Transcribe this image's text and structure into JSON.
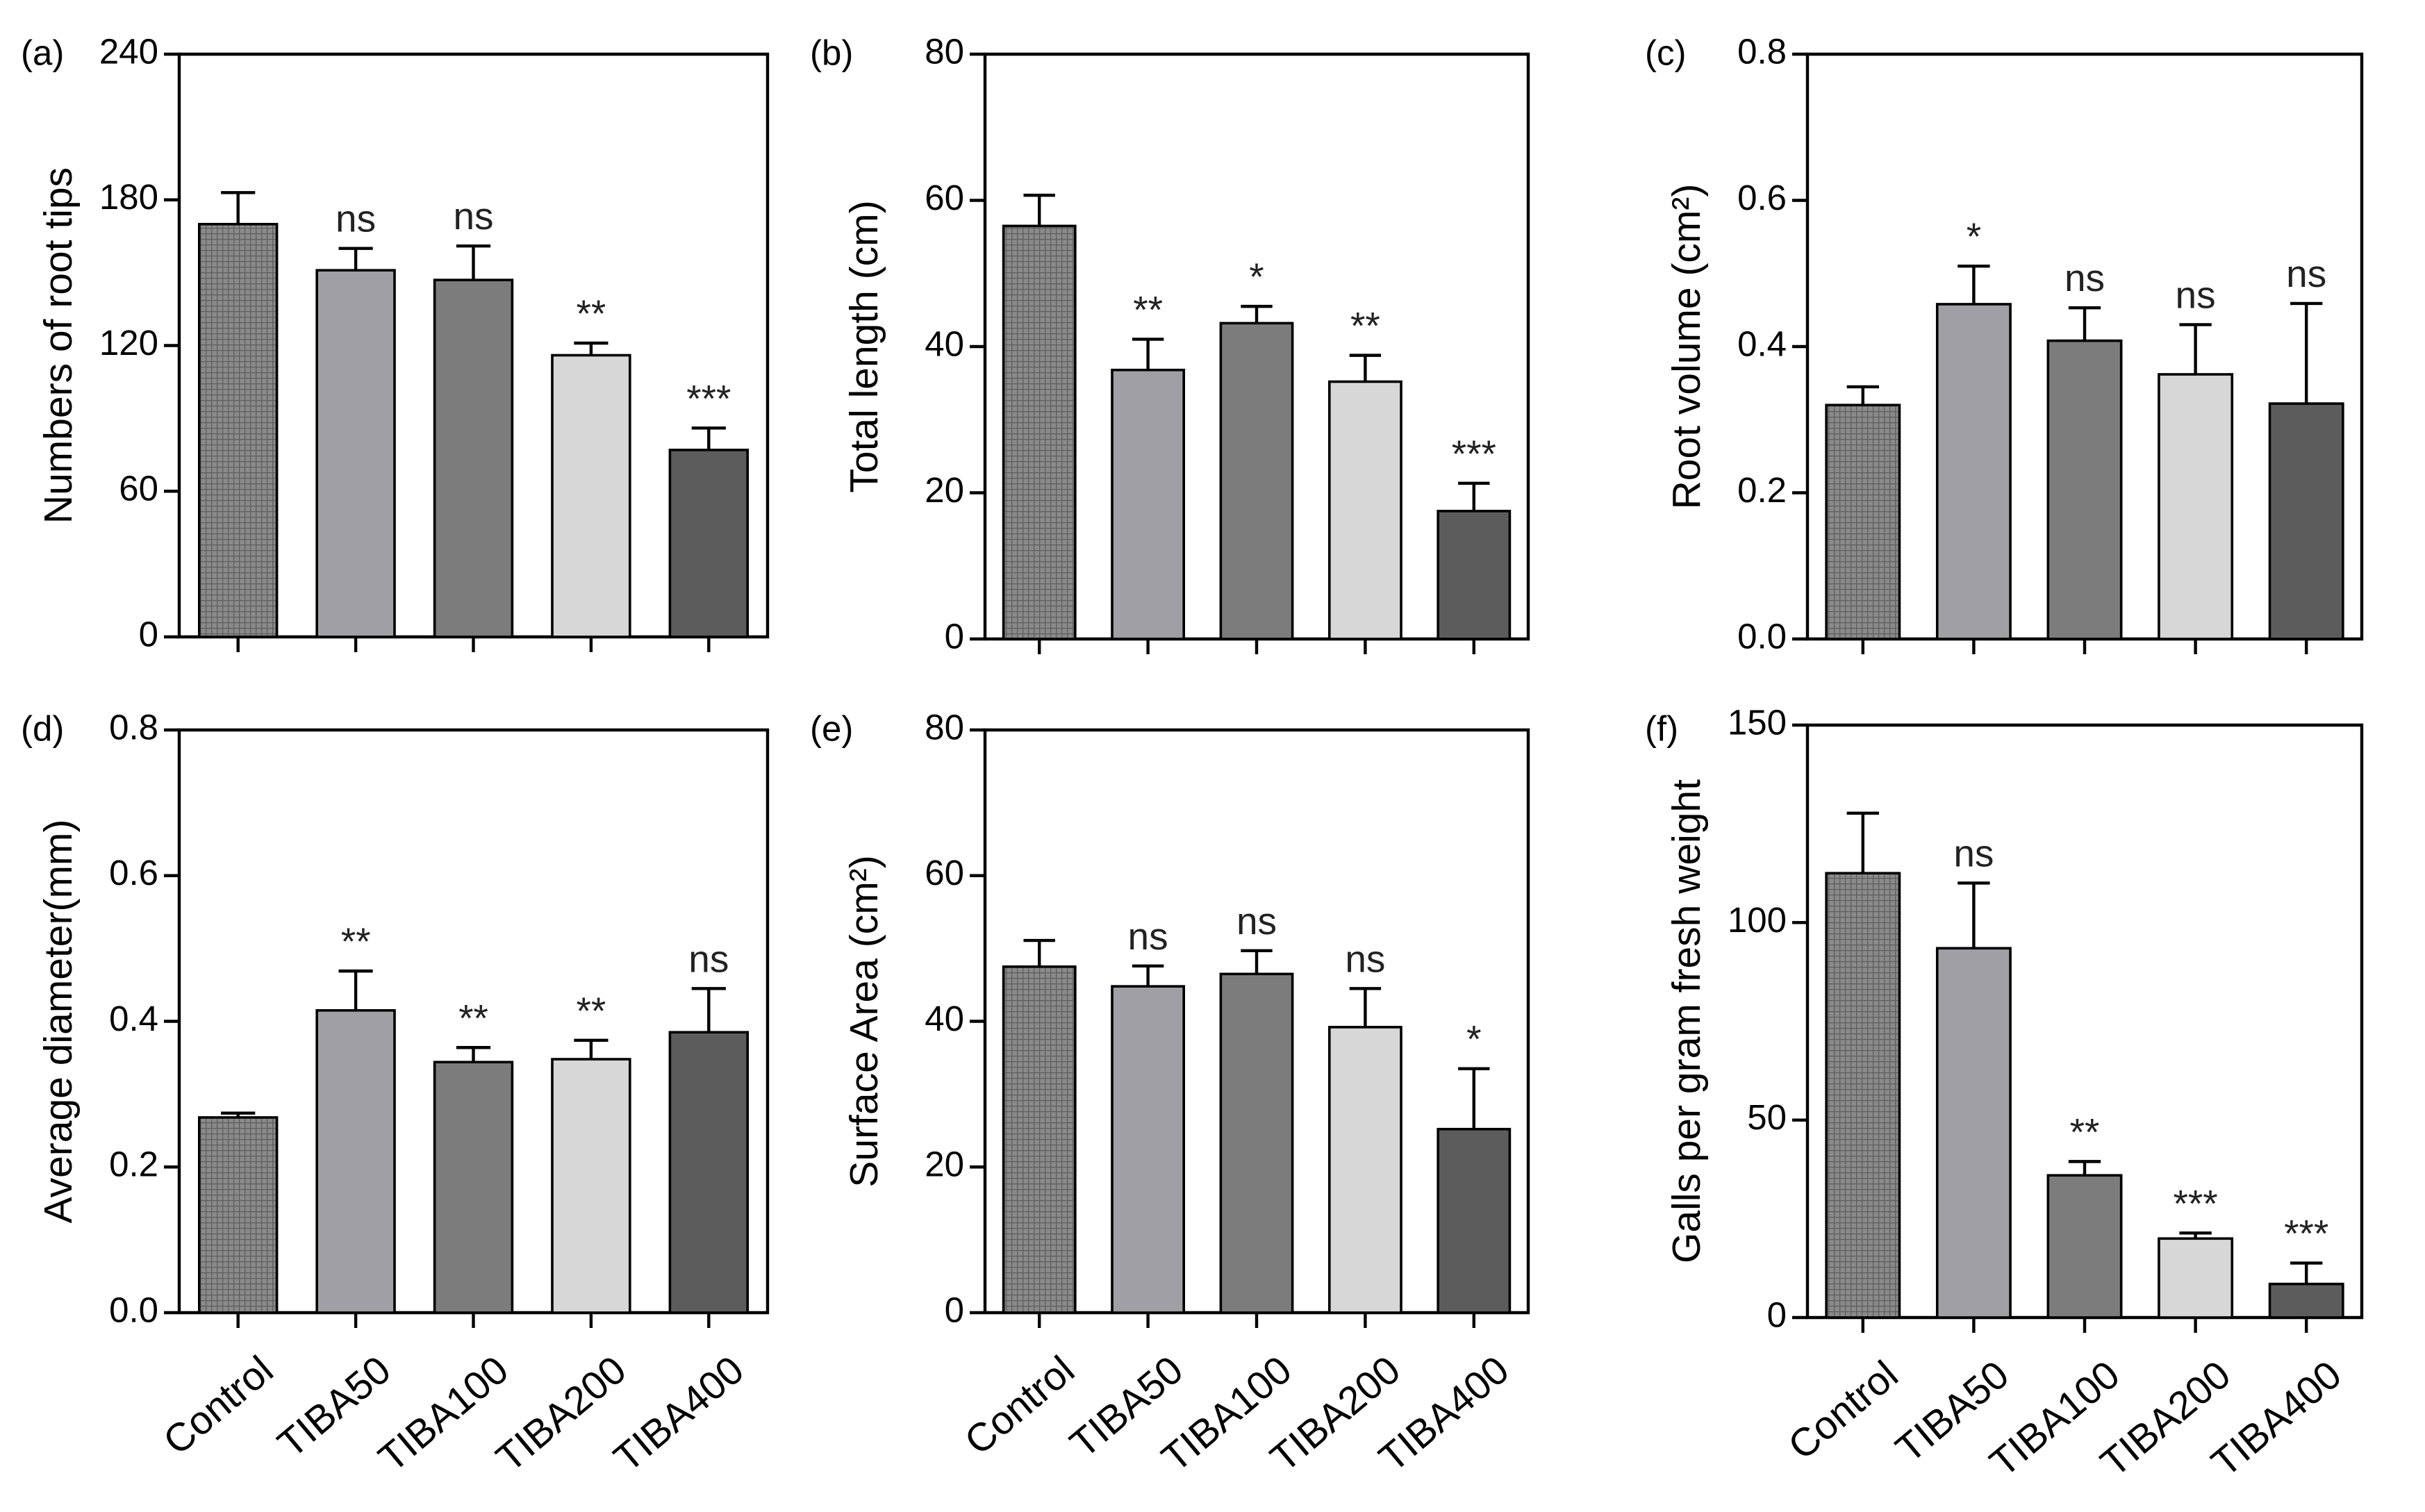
{
  "categories": [
    "Control",
    "TIBA50",
    "TIBA100",
    "TIBA200",
    "TIBA400"
  ],
  "colors": {
    "control_pattern_bg": "#8a8a8a",
    "control_pattern_line": "#5e5e5e",
    "TIBA50": "#a0a0a4",
    "TIBA100": "#7c7c7c",
    "TIBA200": "#d6d7d6",
    "TIBA400": "#5c5c5c"
  },
  "chart_data": [
    {
      "type": "bar",
      "panel_label": "(a)",
      "ylabel": "Numbers of root tips",
      "ylim": [
        0,
        240
      ],
      "yticks": [
        0,
        60,
        120,
        180,
        240
      ],
      "categories": [
        "Control",
        "TIBA50",
        "TIBA100",
        "TIBA200",
        "TIBA400"
      ],
      "values": [
        170,
        151,
        147,
        116,
        77
      ],
      "errors": [
        13,
        9,
        14,
        5,
        9
      ],
      "significance": [
        "",
        "ns",
        "ns",
        "**",
        "***"
      ]
    },
    {
      "type": "bar",
      "panel_label": "(b)",
      "ylabel": "Total length (cm)",
      "ylim": [
        0,
        80
      ],
      "yticks": [
        0,
        20,
        40,
        60,
        80
      ],
      "categories": [
        "Control",
        "TIBA50",
        "TIBA100",
        "TIBA200",
        "TIBA400"
      ],
      "values": [
        56.5,
        36.8,
        43.2,
        35.2,
        17.5
      ],
      "errors": [
        4.2,
        4.2,
        2.3,
        3.6,
        3.8
      ],
      "significance": [
        "",
        "**",
        "*",
        "**",
        "***"
      ]
    },
    {
      "type": "bar",
      "panel_label": "(c)",
      "ylabel": "Root volume (cm²)",
      "ylim": [
        0,
        0.8
      ],
      "yticks": [
        "0.0",
        "0.2",
        "0.4",
        "0.6",
        "0.8"
      ],
      "categories": [
        "Control",
        "TIBA50",
        "TIBA100",
        "TIBA200",
        "TIBA400"
      ],
      "values": [
        0.32,
        0.458,
        0.408,
        0.362,
        0.322
      ],
      "errors": [
        0.025,
        0.052,
        0.045,
        0.068,
        0.137
      ],
      "significance": [
        "",
        "*",
        "ns",
        "ns",
        "ns"
      ]
    },
    {
      "type": "bar",
      "panel_label": "(d)",
      "ylabel": "Average diameter(mm)",
      "ylim": [
        0,
        0.8
      ],
      "yticks": [
        "0.0",
        "0.2",
        "0.4",
        "0.6",
        "0.8"
      ],
      "categories": [
        "Control",
        "TIBA50",
        "TIBA100",
        "TIBA200",
        "TIBA400"
      ],
      "values": [
        0.268,
        0.415,
        0.344,
        0.348,
        0.385
      ],
      "errors": [
        0.006,
        0.054,
        0.02,
        0.026,
        0.06
      ],
      "significance": [
        "",
        "**",
        "**",
        "**",
        "ns"
      ]
    },
    {
      "type": "bar",
      "panel_label": "(e)",
      "ylabel": "Surface Area (cm²)",
      "ylim": [
        0,
        80
      ],
      "yticks": [
        0,
        20,
        40,
        60,
        80
      ],
      "categories": [
        "Control",
        "TIBA50",
        "TIBA100",
        "TIBA200",
        "TIBA400"
      ],
      "values": [
        47.5,
        44.8,
        46.5,
        39.2,
        25.2
      ],
      "errors": [
        3.6,
        2.8,
        3.2,
        5.3,
        8.3
      ],
      "significance": [
        "",
        "ns",
        "ns",
        "ns",
        "*"
      ]
    },
    {
      "type": "bar",
      "panel_label": "(f)",
      "ylabel": "Galls per gram fresh weight",
      "ylim": [
        0,
        150
      ],
      "yticks": [
        0,
        50,
        100,
        150
      ],
      "categories": [
        "Control",
        "TIBA50",
        "TIBA100",
        "TIBA200",
        "TIBA400"
      ],
      "values": [
        112.5,
        93.5,
        36,
        20,
        8.5
      ],
      "errors": [
        15.2,
        16.5,
        3.5,
        1.4,
        5.3
      ],
      "significance": [
        "",
        "ns",
        "**",
        "***",
        "***"
      ]
    }
  ]
}
